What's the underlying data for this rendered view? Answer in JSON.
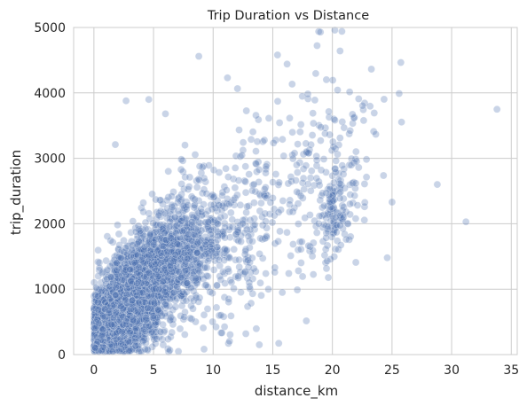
{
  "chart_data": {
    "type": "scatter",
    "title": "Trip Duration vs Distance",
    "xlabel": "distance_km",
    "ylabel": "trip_duration",
    "xlim": [
      -1.7,
      35.5
    ],
    "ylim": [
      0,
      5000
    ],
    "xticks": [
      0,
      5,
      10,
      15,
      20,
      25,
      30,
      35
    ],
    "yticks": [
      0,
      1000,
      2000,
      3000,
      4000,
      5000
    ],
    "grid": true,
    "legend": "none",
    "point_color": "#4c72b0",
    "approx_points_shown": 5000,
    "notable_points": [
      {
        "x": 33.8,
        "y": 3750
      },
      {
        "x": 31.2,
        "y": 2030
      },
      {
        "x": 28.8,
        "y": 2600
      },
      {
        "x": 25.6,
        "y": 3990
      },
      {
        "x": 25.0,
        "y": 2330
      },
      {
        "x": 24.6,
        "y": 1480
      },
      {
        "x": 20.8,
        "y": 4940
      },
      {
        "x": 19.0,
        "y": 4930
      },
      {
        "x": 20.2,
        "y": 4960
      },
      {
        "x": 8.8,
        "y": 4560
      },
      {
        "x": 15.4,
        "y": 4580
      },
      {
        "x": 16.2,
        "y": 4440
      },
      {
        "x": 11.2,
        "y": 4230
      },
      {
        "x": 2.7,
        "y": 3880
      },
      {
        "x": 4.6,
        "y": 3900
      },
      {
        "x": 6.0,
        "y": 3680
      },
      {
        "x": 1.8,
        "y": 3210
      },
      {
        "x": 15.8,
        "y": 950
      }
    ],
    "clusters": [
      {
        "x_center": 1.3,
        "y_center": 460,
        "x_spread": 0.9,
        "y_spread": 260,
        "count": 1700
      },
      {
        "x_center": 3.0,
        "y_center": 820,
        "x_spread": 1.3,
        "y_spread": 360,
        "count": 1500
      },
      {
        "x_center": 5.2,
        "y_center": 1230,
        "x_spread": 1.7,
        "y_spread": 430,
        "count": 950
      },
      {
        "x_center": 8.0,
        "y_center": 1600,
        "x_spread": 2.0,
        "y_spread": 520,
        "count": 420
      },
      {
        "x_center": 11.8,
        "y_center": 1850,
        "x_spread": 2.4,
        "y_spread": 650,
        "count": 200
      },
      {
        "x_center": 20.3,
        "y_center": 2300,
        "x_spread": 1.1,
        "y_spread": 330,
        "count": 140
      },
      {
        "x_center": 19.0,
        "y_center": 2900,
        "x_spread": 3.0,
        "y_spread": 800,
        "count": 120
      },
      {
        "x_center": 14.5,
        "y_center": 2400,
        "x_spread": 3.5,
        "y_spread": 800,
        "count": 90
      }
    ]
  }
}
